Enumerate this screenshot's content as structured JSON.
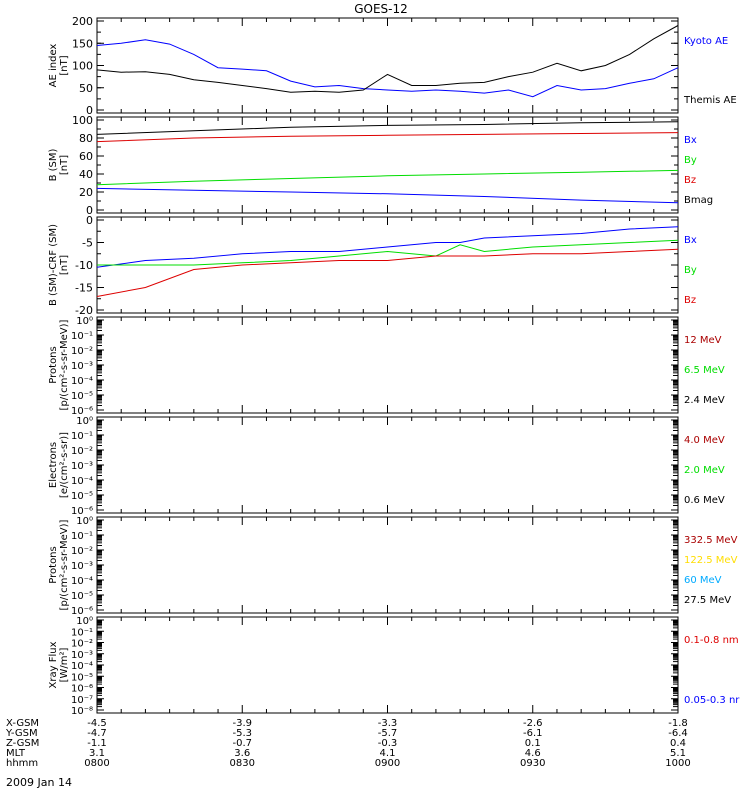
{
  "title": "GOES-12",
  "date": "2009 Jan 14",
  "colors": {
    "black": "#000000",
    "blue": "#0000ff",
    "red": "#dd0000",
    "darkred": "#aa0000",
    "green": "#00dd00",
    "yellow": "#ffdd00",
    "cyan": "#00aaff"
  },
  "chart_data": [
    {
      "type": "line",
      "ylabel": [
        "AE index",
        "[nT]"
      ],
      "ylim": [
        0,
        200
      ],
      "yticks": [
        "0",
        "50",
        "100",
        "150",
        "200"
      ],
      "ytick_values": [
        0,
        50,
        100,
        150,
        200
      ],
      "x": [
        0,
        5,
        10,
        15,
        20,
        25,
        30,
        35,
        40,
        45,
        50,
        55,
        60,
        65,
        70,
        75,
        80,
        85,
        90,
        95,
        100,
        105,
        110,
        115,
        120
      ],
      "series": [
        {
          "name": "Kyoto AE",
          "color": "#0000ff",
          "values": [
            145,
            150,
            158,
            148,
            125,
            95,
            92,
            88,
            65,
            52,
            55,
            48,
            45,
            42,
            45,
            42,
            38,
            45,
            30,
            55,
            45,
            48,
            60,
            70,
            95
          ]
        },
        {
          "name": "Themis AE",
          "color": "#000000",
          "values": [
            90,
            85,
            86,
            80,
            68,
            62,
            55,
            48,
            40,
            42,
            40,
            45,
            80,
            55,
            55,
            60,
            62,
            75,
            85,
            105,
            88,
            100,
            125,
            160,
            190
          ]
        }
      ]
    },
    {
      "type": "line",
      "ylabel": [
        "B (SM)",
        "[nT]"
      ],
      "ylim": [
        0,
        100
      ],
      "yticks": [
        "0",
        "20",
        "40",
        "60",
        "80",
        "100"
      ],
      "ytick_values": [
        0,
        20,
        40,
        60,
        80,
        100
      ],
      "x": [
        0,
        20,
        40,
        60,
        80,
        100,
        120
      ],
      "series": [
        {
          "name": "Bx",
          "color": "#0000ff",
          "values": [
            24,
            22,
            20,
            18,
            15,
            11,
            8
          ]
        },
        {
          "name": "By",
          "color": "#00dd00",
          "values": [
            28,
            32,
            35,
            38,
            40,
            42,
            44
          ]
        },
        {
          "name": "Bz",
          "color": "#dd0000",
          "values": [
            76,
            80,
            82,
            83,
            84,
            85,
            86
          ]
        },
        {
          "name": "Bmag",
          "color": "#000000",
          "values": [
            84,
            88,
            92,
            94,
            95,
            97,
            98
          ]
        }
      ]
    },
    {
      "type": "line",
      "ylabel": [
        "B (SM)-CRF (SM)",
        "[nT]"
      ],
      "ylim": [
        -20,
        0
      ],
      "yticks": [
        "-20",
        "-15",
        "-10",
        "-5",
        "0"
      ],
      "ytick_values": [
        -20,
        -15,
        -10,
        -5,
        0
      ],
      "x": [
        0,
        10,
        20,
        30,
        40,
        50,
        60,
        70,
        75,
        80,
        90,
        100,
        110,
        120
      ],
      "series": [
        {
          "name": "Bx",
          "color": "#0000ff",
          "values": [
            -10.5,
            -9,
            -8.5,
            -7.5,
            -7,
            -7,
            -6,
            -5,
            -5,
            -4,
            -3.5,
            -3,
            -2,
            -1.5
          ]
        },
        {
          "name": "By",
          "color": "#00dd00",
          "values": [
            -10,
            -10,
            -10,
            -9.5,
            -9,
            -8,
            -7,
            -8,
            -5.5,
            -7,
            -6,
            -5.5,
            -5,
            -4.5
          ]
        },
        {
          "name": "Bz",
          "color": "#dd0000",
          "values": [
            -17,
            -15,
            -11,
            -10,
            -9.5,
            -9,
            -9,
            -8,
            -8,
            -8,
            -7.5,
            -7.5,
            -7,
            -6.5
          ]
        }
      ]
    },
    {
      "type": "line",
      "ylabel": [
        "Protons",
        "[p/(cm²-s-sr-MeV)]"
      ],
      "yscale": "log",
      "yticks": [
        "10⁻⁶",
        "10⁻⁵",
        "10⁻⁴",
        "10⁻³",
        "10⁻²",
        "10⁻¹",
        "10⁰"
      ],
      "ytick_values": [
        -6,
        -5,
        -4,
        -3,
        -2,
        -1,
        0
      ],
      "series": [
        {
          "name": "12 MeV",
          "color": "#aa0000",
          "values": []
        },
        {
          "name": "6.5 MeV",
          "color": "#00dd00",
          "values": []
        },
        {
          "name": "2.4 MeV",
          "color": "#000000",
          "values": []
        }
      ]
    },
    {
      "type": "line",
      "ylabel": [
        "Electrons",
        "[e/(cm²-s-sr)]"
      ],
      "yscale": "log",
      "yticks": [
        "10⁻⁶",
        "10⁻⁵",
        "10⁻⁴",
        "10⁻³",
        "10⁻²",
        "10⁻¹",
        "10⁰"
      ],
      "ytick_values": [
        -6,
        -5,
        -4,
        -3,
        -2,
        -1,
        0
      ],
      "series": [
        {
          "name": "4.0 MeV",
          "color": "#aa0000",
          "values": []
        },
        {
          "name": "2.0 MeV",
          "color": "#00dd00",
          "values": []
        },
        {
          "name": "0.6 MeV",
          "color": "#000000",
          "values": []
        }
      ]
    },
    {
      "type": "line",
      "ylabel": [
        "Protons",
        "[p/(cm²-s-sr-MeV)]"
      ],
      "yscale": "log",
      "yticks": [
        "10⁻⁶",
        "10⁻⁵",
        "10⁻⁴",
        "10⁻³",
        "10⁻²",
        "10⁻¹",
        "10⁰"
      ],
      "ytick_values": [
        -6,
        -5,
        -4,
        -3,
        -2,
        -1,
        0
      ],
      "series": [
        {
          "name": "332.5 MeV",
          "color": "#aa0000",
          "values": []
        },
        {
          "name": "122.5 MeV",
          "color": "#ffdd00",
          "values": []
        },
        {
          "name": "60 MeV",
          "color": "#00aaff",
          "values": []
        },
        {
          "name": "27.5 MeV",
          "color": "#000000",
          "values": []
        }
      ]
    },
    {
      "type": "line",
      "ylabel": [
        "Xray Flux",
        "[W/m²]"
      ],
      "yscale": "log",
      "yticks": [
        "10⁻⁸",
        "10⁻⁷",
        "10⁻⁶",
        "10⁻⁵",
        "10⁻⁴",
        "10⁻³",
        "10⁻²",
        "10⁻¹",
        "10⁰"
      ],
      "ytick_values": [
        -8,
        -7,
        -6,
        -5,
        -4,
        -3,
        -2,
        -1,
        0
      ],
      "series": [
        {
          "name": "0.1-0.8 nm",
          "color": "#dd0000",
          "values": []
        },
        {
          "name": "0.05-0.3 nr",
          "color": "#0000ff",
          "values": []
        }
      ]
    }
  ],
  "x_axis": {
    "range": [
      0,
      120
    ],
    "tick_positions": [
      0,
      30,
      60,
      90,
      120
    ],
    "rows": [
      {
        "label": "X-GSM",
        "values": [
          "-4.5",
          "-3.9",
          "-3.3",
          "-2.6",
          "-1.8"
        ]
      },
      {
        "label": "Y-GSM",
        "values": [
          "-4.7",
          "-5.3",
          "-5.7",
          "-6.1",
          "-6.4"
        ]
      },
      {
        "label": "Z-GSM",
        "values": [
          "-1.1",
          "-0.7",
          "-0.3",
          "0.1",
          "0.4"
        ]
      },
      {
        "label": "MLT",
        "values": [
          "3.1",
          "3.6",
          "4.1",
          "4.6",
          "5.1"
        ]
      },
      {
        "label": "hhmm",
        "values": [
          "0800",
          "0830",
          "0900",
          "0930",
          "1000"
        ]
      }
    ]
  }
}
